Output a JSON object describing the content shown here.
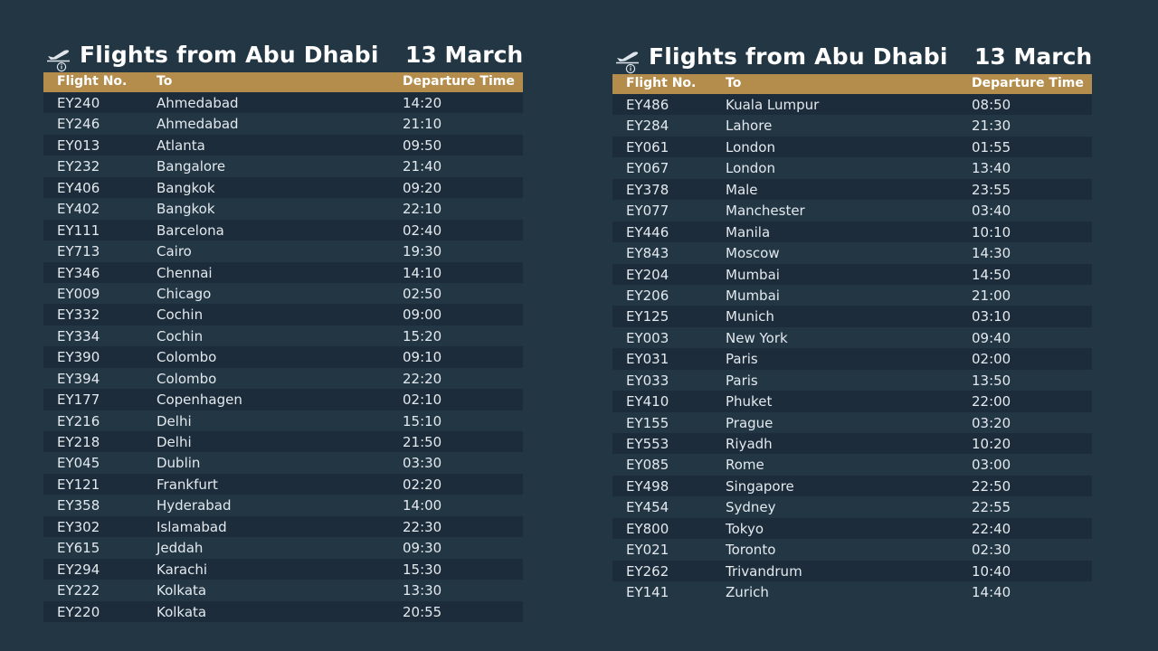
{
  "colors": {
    "background": "#233644",
    "row_dark": "#1c2c3a",
    "header_gold": "#b48d4c",
    "text": "#e3e9ee"
  },
  "icons": {
    "departure": "plane-takeoff-info-icon"
  },
  "boards": [
    {
      "title": "Flights from Abu Dhabi",
      "date": "13 March",
      "columns": [
        "Flight No.",
        "To",
        "Departure Time"
      ],
      "rows": [
        {
          "flight": "EY240",
          "to": "Ahmedabad",
          "time": "14:20"
        },
        {
          "flight": "EY246",
          "to": "Ahmedabad",
          "time": "21:10"
        },
        {
          "flight": "EY013",
          "to": "Atlanta",
          "time": "09:50"
        },
        {
          "flight": "EY232",
          "to": "Bangalore",
          "time": "21:40"
        },
        {
          "flight": "EY406",
          "to": "Bangkok",
          "time": "09:20"
        },
        {
          "flight": "EY402",
          "to": "Bangkok",
          "time": "22:10"
        },
        {
          "flight": "EY111",
          "to": "Barcelona",
          "time": "02:40"
        },
        {
          "flight": "EY713",
          "to": "Cairo",
          "time": "19:30"
        },
        {
          "flight": "EY346",
          "to": "Chennai",
          "time": "14:10"
        },
        {
          "flight": "EY009",
          "to": "Chicago",
          "time": "02:50"
        },
        {
          "flight": "EY332",
          "to": "Cochin",
          "time": "09:00"
        },
        {
          "flight": "EY334",
          "to": "Cochin",
          "time": "15:20"
        },
        {
          "flight": "EY390",
          "to": "Colombo",
          "time": "09:10"
        },
        {
          "flight": "EY394",
          "to": "Colombo",
          "time": "22:20"
        },
        {
          "flight": "EY177",
          "to": "Copenhagen",
          "time": "02:10"
        },
        {
          "flight": "EY216",
          "to": "Delhi",
          "time": "15:10"
        },
        {
          "flight": "EY218",
          "to": "Delhi",
          "time": "21:50"
        },
        {
          "flight": "EY045",
          "to": "Dublin",
          "time": "03:30"
        },
        {
          "flight": "EY121",
          "to": "Frankfurt",
          "time": "02:20"
        },
        {
          "flight": "EY358",
          "to": "Hyderabad",
          "time": "14:00"
        },
        {
          "flight": "EY302",
          "to": "Islamabad",
          "time": "22:30"
        },
        {
          "flight": "EY615",
          "to": "Jeddah",
          "time": "09:30"
        },
        {
          "flight": "EY294",
          "to": "Karachi",
          "time": "15:30"
        },
        {
          "flight": "EY222",
          "to": "Kolkata",
          "time": "13:30"
        },
        {
          "flight": "EY220",
          "to": "Kolkata",
          "time": "20:55"
        }
      ]
    },
    {
      "title": "Flights from Abu Dhabi",
      "date": "13 March",
      "columns": [
        "Flight No.",
        "To",
        "Departure Time"
      ],
      "rows": [
        {
          "flight": "EY486",
          "to": "Kuala Lumpur",
          "time": "08:50"
        },
        {
          "flight": "EY284",
          "to": "Lahore",
          "time": "21:30"
        },
        {
          "flight": "EY061",
          "to": "London",
          "time": "01:55"
        },
        {
          "flight": "EY067",
          "to": "London",
          "time": "13:40"
        },
        {
          "flight": "EY378",
          "to": "Male",
          "time": "23:55"
        },
        {
          "flight": "EY077",
          "to": "Manchester",
          "time": "03:40"
        },
        {
          "flight": "EY446",
          "to": "Manila",
          "time": "10:10"
        },
        {
          "flight": "EY843",
          "to": "Moscow",
          "time": "14:30"
        },
        {
          "flight": "EY204",
          "to": "Mumbai",
          "time": "14:50"
        },
        {
          "flight": "EY206",
          "to": "Mumbai",
          "time": "21:00"
        },
        {
          "flight": "EY125",
          "to": "Munich",
          "time": "03:10"
        },
        {
          "flight": "EY003",
          "to": "New York",
          "time": "09:40"
        },
        {
          "flight": "EY031",
          "to": "Paris",
          "time": "02:00"
        },
        {
          "flight": "EY033",
          "to": "Paris",
          "time": "13:50"
        },
        {
          "flight": "EY410",
          "to": "Phuket",
          "time": "22:00"
        },
        {
          "flight": "EY155",
          "to": "Prague",
          "time": "03:20"
        },
        {
          "flight": "EY553",
          "to": "Riyadh",
          "time": "10:20"
        },
        {
          "flight": "EY085",
          "to": "Rome",
          "time": "03:00"
        },
        {
          "flight": "EY498",
          "to": "Singapore",
          "time": "22:50"
        },
        {
          "flight": "EY454",
          "to": "Sydney",
          "time": "22:55"
        },
        {
          "flight": "EY800",
          "to": "Tokyo",
          "time": "22:40"
        },
        {
          "flight": "EY021",
          "to": "Toronto",
          "time": "02:30"
        },
        {
          "flight": "EY262",
          "to": "Trivandrum",
          "time": "10:40"
        },
        {
          "flight": "EY141",
          "to": "Zurich",
          "time": "14:40"
        }
      ]
    }
  ]
}
